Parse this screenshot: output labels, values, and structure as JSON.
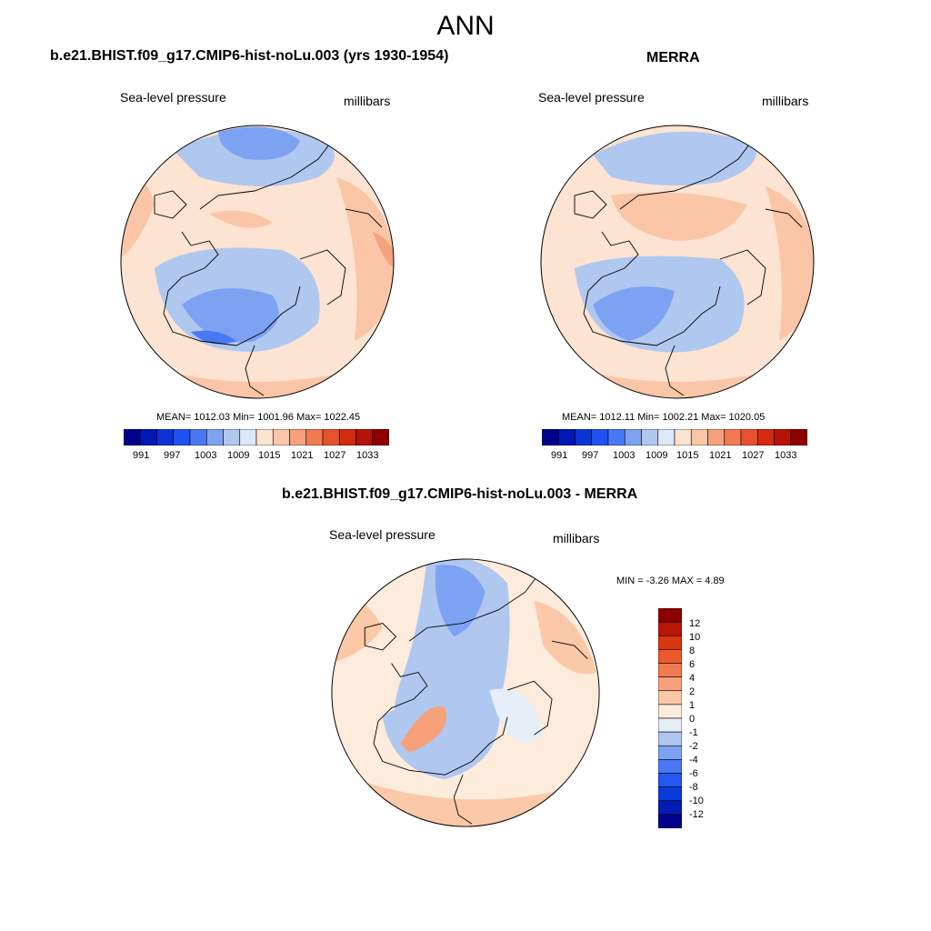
{
  "title": "ANN",
  "panel_left": {
    "title": "b.e21.BHIST.f09_g17.CMIP6-hist-noLu.003 (yrs 1930-1954)",
    "variable": "Sea-level pressure",
    "units": "millibars",
    "stats": "MEAN= 1012.03  Min= 1001.96  Max= 1022.45"
  },
  "panel_right": {
    "title": "MERRA",
    "variable": "Sea-level pressure",
    "units": "millibars",
    "stats": "MEAN= 1012.11  Min= 1002.21  Max= 1020.05"
  },
  "panel_diff": {
    "title": "b.e21.BHIST.f09_g17.CMIP6-hist-noLu.003 - MERRA",
    "variable": "Sea-level pressure",
    "units": "millibars",
    "stats": "MIN =  -3.26 MAX =   4.89"
  },
  "colorbar_abs": {
    "colors": [
      "#00008b",
      "#0018b8",
      "#0a34d8",
      "#1f52f0",
      "#4a78f5",
      "#7da2f2",
      "#b0c8f0",
      "#dce8f8",
      "#fde3d2",
      "#fbc5a8",
      "#f7a17e",
      "#f27a52",
      "#e8512d",
      "#d42a10",
      "#b51205",
      "#8c0000"
    ],
    "tick_labels": [
      "991",
      "997",
      "1003",
      "1009",
      "1015",
      "1021",
      "1027",
      "1033"
    ]
  },
  "colorbar_diff": {
    "colors": [
      "#00008b",
      "#001cb5",
      "#0a3ad9",
      "#2456f0",
      "#4a78f5",
      "#7da2f2",
      "#b0c8f0",
      "#e6eef8",
      "#fdebdc",
      "#fbc8a8",
      "#f7a07a",
      "#f27a50",
      "#ec5a2c",
      "#d9350e",
      "#b81505",
      "#8c0000"
    ],
    "tick_labels": [
      "12",
      "10",
      "8",
      "6",
      "4",
      "2",
      "1",
      "0",
      "-1",
      "-2",
      "-4",
      "-6",
      "-8",
      "-10",
      "-12"
    ]
  }
}
